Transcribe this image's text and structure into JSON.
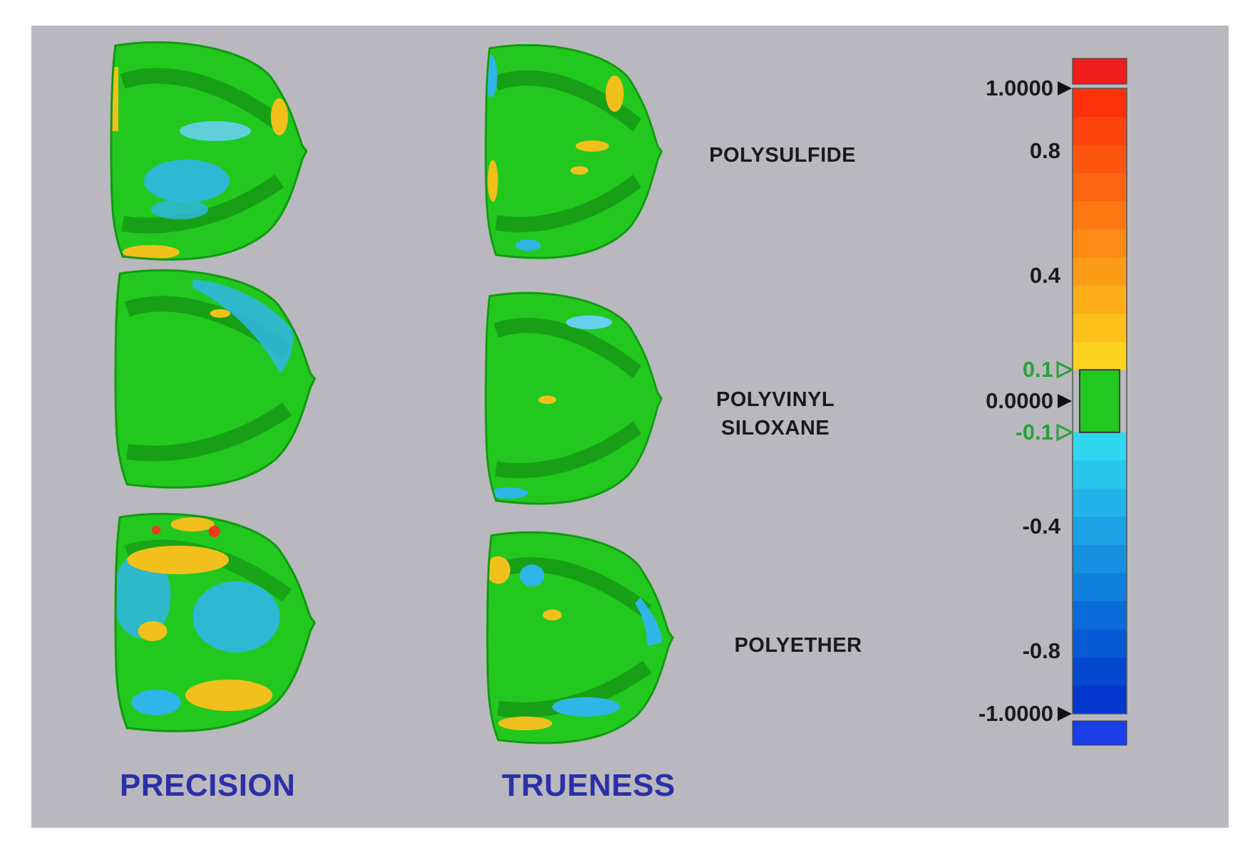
{
  "materials": {
    "polysulfide": "POLYSULFIDE",
    "pvs_line1": "POLYVINYL",
    "pvs_line2": "SILOXANE",
    "polyether": "POLYETHER"
  },
  "columns": {
    "precision": "PRECISION",
    "trueness": "TRUENESS"
  },
  "scale": {
    "ticks": [
      {
        "label": "1.0000",
        "value": 1.0,
        "marker": true,
        "color": "black"
      },
      {
        "label": "0.8",
        "value": 0.8,
        "marker": false,
        "color": "black"
      },
      {
        "label": "0.4",
        "value": 0.4,
        "marker": false,
        "color": "black"
      },
      {
        "label": "0.1",
        "value": 0.1,
        "marker": true,
        "color": "green"
      },
      {
        "label": "0.0000",
        "value": 0.0,
        "marker": true,
        "color": "black"
      },
      {
        "label": "-0.1",
        "value": -0.1,
        "marker": true,
        "color": "green"
      },
      {
        "label": "-0.4",
        "value": -0.4,
        "marker": false,
        "color": "black"
      },
      {
        "label": "-0.8",
        "value": -0.8,
        "marker": false,
        "color": "black"
      },
      {
        "label": "-1.0000",
        "value": -1.0,
        "marker": true,
        "color": "black"
      }
    ],
    "colors": {
      "over": "#ee1e1e",
      "under": "#1a3ee8",
      "tolerance": "#22c81e",
      "positive": [
        "#fbd21e",
        "#fbc01a",
        "#fcae18",
        "#fc9c16",
        "#fc8a14",
        "#fd7812",
        "#fd6610",
        "#fd540e",
        "#fe420c",
        "#fe300a"
      ],
      "negative": [
        "#2fd8f0",
        "#28c6ec",
        "#22b4e8",
        "#1ca2e4",
        "#1690e0",
        "#107edc",
        "#0a6cd8",
        "#065ad4",
        "#0448d0",
        "#0236cc"
      ]
    }
  }
}
